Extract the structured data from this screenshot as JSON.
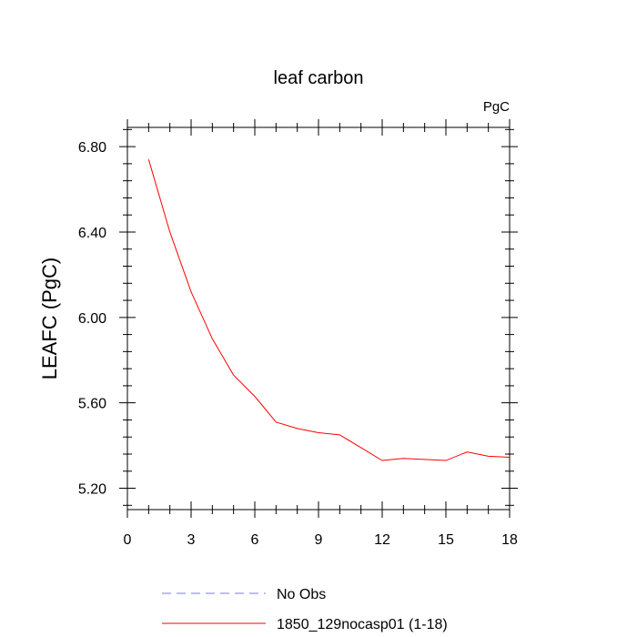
{
  "chart_data": {
    "type": "line",
    "title": "leaf carbon",
    "units_label": "PgC",
    "xlabel": "",
    "ylabel": "LEAFC  (PgC)",
    "xlim": [
      0,
      18
    ],
    "ylim": [
      5.1,
      6.89
    ],
    "xticks": [
      0,
      3,
      6,
      9,
      12,
      15,
      18
    ],
    "xtick_labels": [
      "0",
      "3",
      "6",
      "9",
      "12",
      "15",
      "18"
    ],
    "yticks": [
      5.2,
      5.6,
      6.0,
      6.4,
      6.8
    ],
    "ytick_labels": [
      "5.20",
      "5.60",
      "6.00",
      "6.40",
      "6.80"
    ],
    "x_minor_step": 1,
    "y_minor_step": 0.08,
    "grid": false,
    "series": [
      {
        "name": "1850_129nocasp01 (1-18)",
        "color": "#ff0000",
        "dash": "solid",
        "x": [
          1,
          2,
          3,
          4,
          5,
          6,
          7,
          8,
          9,
          10,
          11,
          12,
          13,
          14,
          15,
          16,
          17,
          18
        ],
        "values": [
          6.74,
          6.4,
          6.12,
          5.9,
          5.73,
          5.63,
          5.51,
          5.48,
          5.46,
          5.45,
          5.39,
          5.33,
          5.34,
          5.335,
          5.33,
          5.37,
          5.35,
          5.345
        ]
      }
    ],
    "legend": {
      "placement": "bottom-left",
      "entries": [
        {
          "label": "No Obs",
          "color": "#7a7aff",
          "dash": "dashed"
        },
        {
          "label": "1850_129nocasp01 (1-18)",
          "color": "#ff0000",
          "dash": "solid"
        }
      ]
    }
  }
}
